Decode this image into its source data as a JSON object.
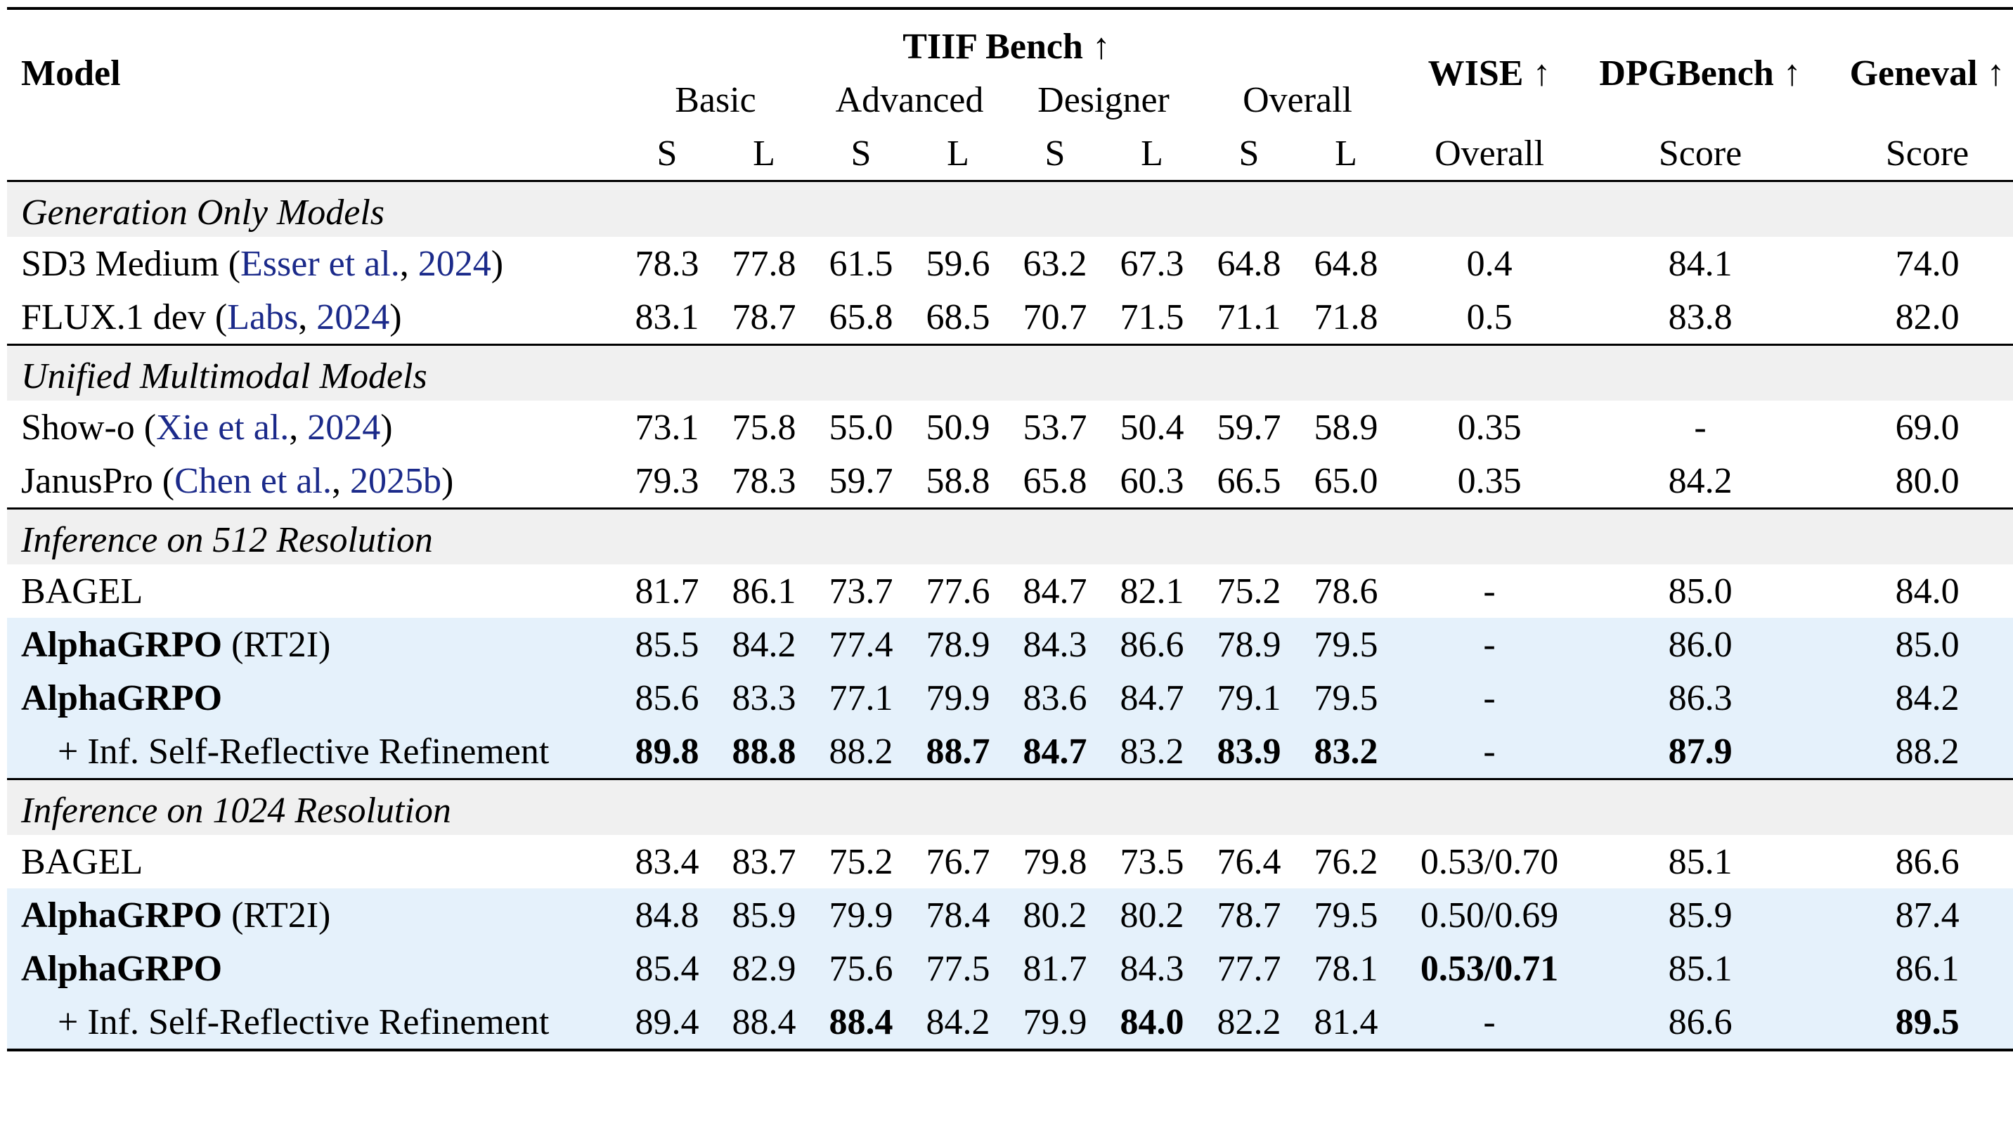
{
  "header": {
    "model": "Model",
    "tiif": "TIIF Bench ↑",
    "wise": "WISE ↑",
    "dpg": "DPGBench ↑",
    "geneval": "Geneval ↑",
    "sub": [
      "Basic",
      "Advanced",
      "Designer",
      "Overall"
    ],
    "sl": [
      "S",
      "L",
      "S",
      "L",
      "S",
      "L",
      "S",
      "L"
    ],
    "wise_sub": "Overall",
    "dpg_sub": "Score",
    "geneval_sub": "Score"
  },
  "sections": [
    {
      "title": "Generation Only Models",
      "rows": [
        {
          "name": "SD3 Medium",
          "cite_pre": " (",
          "cite_auth": "Esser et al.",
          "cite_sep": ", ",
          "cite_year": "2024",
          "cite_post": ")",
          "values": [
            "78.3",
            "77.8",
            "61.5",
            "59.6",
            "63.2",
            "67.3",
            "64.8",
            "64.8",
            "0.4",
            "84.1",
            "74.0"
          ]
        },
        {
          "name": "FLUX.1 dev",
          "cite_pre": " (",
          "cite_auth": "Labs",
          "cite_sep": ", ",
          "cite_year": "2024",
          "cite_post": ")",
          "values": [
            "83.1",
            "78.7",
            "65.8",
            "68.5",
            "70.7",
            "71.5",
            "71.1",
            "71.8",
            "0.5",
            "83.8",
            "82.0"
          ]
        }
      ]
    },
    {
      "title": "Unified Multimodal Models",
      "rows": [
        {
          "name": "Show-o",
          "cite_pre": " (",
          "cite_auth": "Xie et al.",
          "cite_sep": ", ",
          "cite_year": "2024",
          "cite_post": ")",
          "values": [
            "73.1",
            "75.8",
            "55.0",
            "50.9",
            "53.7",
            "50.4",
            "59.7",
            "58.9",
            "0.35",
            "-",
            "69.0"
          ]
        },
        {
          "name": "JanusPro",
          "cite_pre": " (",
          "cite_auth": "Chen et al.",
          "cite_sep": ", ",
          "cite_year": "2025b",
          "cite_post": ")",
          "values": [
            "79.3",
            "78.3",
            "59.7",
            "58.8",
            "65.8",
            "60.3",
            "66.5",
            "65.0",
            "0.35",
            "84.2",
            "80.0"
          ]
        }
      ]
    },
    {
      "title": "Inference on 512 Resolution",
      "rows": [
        {
          "name": "BAGEL",
          "values": [
            "81.7",
            "86.1",
            "73.7",
            "77.6",
            "84.7",
            "82.1",
            "75.2",
            "78.6",
            "-",
            "85.0",
            "84.0"
          ]
        },
        {
          "name": "AlphaGRPO",
          "suffix": " (RT2I)",
          "values": [
            "85.5",
            "84.2",
            "77.4",
            "78.9",
            "84.3",
            "86.6",
            "78.9",
            "79.5",
            "-",
            "86.0",
            "85.0"
          ]
        },
        {
          "name": "AlphaGRPO",
          "values": [
            "85.6",
            "83.3",
            "77.1",
            "79.9",
            "83.6",
            "84.7",
            "79.1",
            "79.5",
            "-",
            "86.3",
            "84.2"
          ]
        },
        {
          "name": "+ Inf. Self-Reflective Refinement",
          "values": [
            "89.8",
            "88.8",
            "88.2",
            "88.7",
            "84.7",
            "83.2",
            "83.9",
            "83.2",
            "-",
            "87.9",
            "88.2"
          ]
        }
      ]
    },
    {
      "title": "Inference on 1024 Resolution",
      "rows": [
        {
          "name": "BAGEL",
          "values": [
            "83.4",
            "83.7",
            "75.2",
            "76.7",
            "79.8",
            "73.5",
            "76.4",
            "76.2",
            "0.53/0.70",
            "85.1",
            "86.6"
          ]
        },
        {
          "name": "AlphaGRPO",
          "suffix": " (RT2I)",
          "values": [
            "84.8",
            "85.9",
            "79.9",
            "78.4",
            "80.2",
            "80.2",
            "78.7",
            "79.5",
            "0.50/0.69",
            "85.9",
            "87.4"
          ]
        },
        {
          "name": "AlphaGRPO",
          "values": [
            "85.4",
            "82.9",
            "75.6",
            "77.5",
            "81.7",
            "84.3",
            "77.7",
            "78.1",
            "0.53/0.71",
            "85.1",
            "86.1"
          ]
        },
        {
          "name": "+ Inf. Self-Reflective Refinement",
          "values": [
            "89.4",
            "88.4",
            "88.4",
            "84.2",
            "79.9",
            "84.0",
            "82.2",
            "81.4",
            "-",
            "86.6",
            "89.5"
          ]
        }
      ]
    }
  ]
}
